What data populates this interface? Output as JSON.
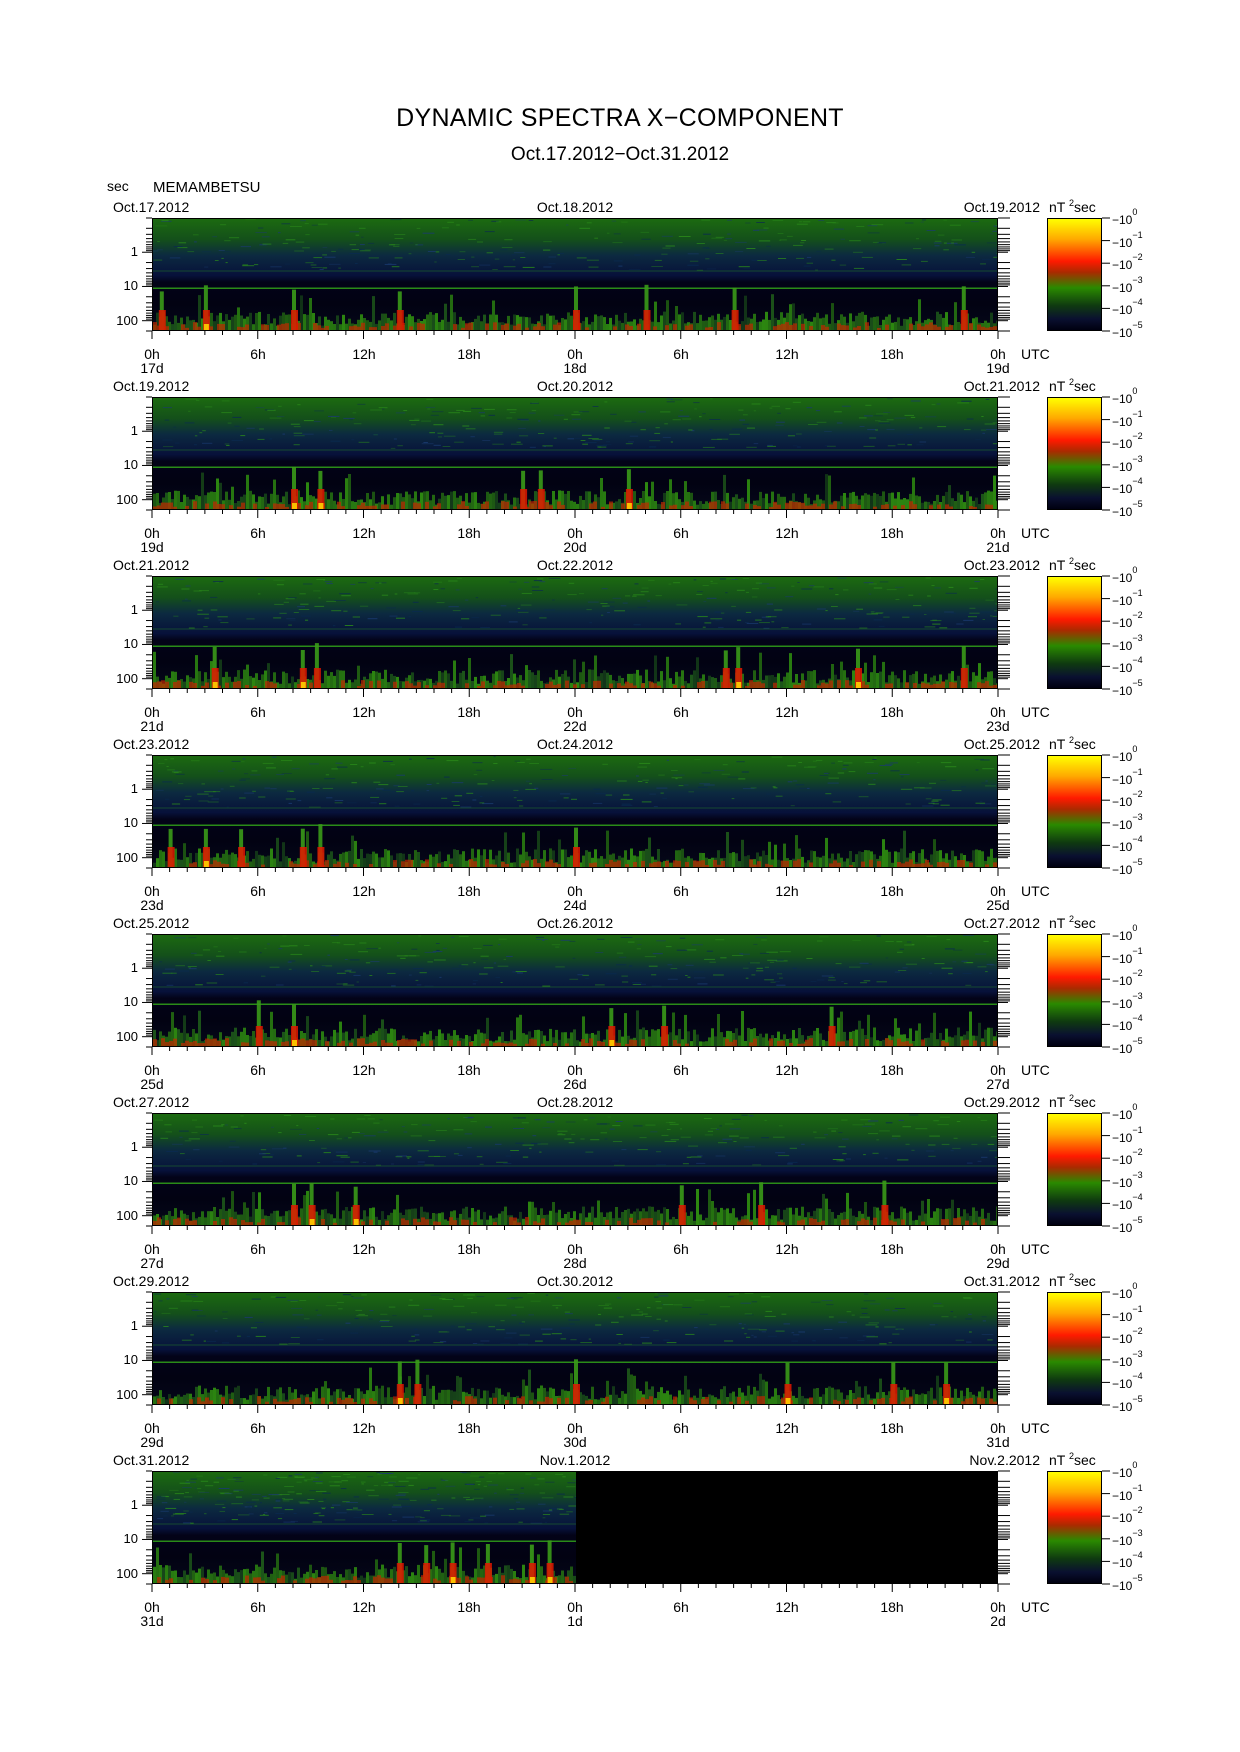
{
  "title": "DYNAMIC SPECTRA X−COMPONENT",
  "subtitle": "Oct.17.2012−Oct.31.2012",
  "station": "MEMAMBETSU",
  "y_unit": "sec",
  "colorbar_unit": "nT",
  "colorbar_unit_sup": "2",
  "colorbar_unit_suffix": "sec",
  "colorbar_ticks": [
    {
      "base": "10",
      "exp": "0"
    },
    {
      "base": "10",
      "exp": "−1"
    },
    {
      "base": "10",
      "exp": "−2"
    },
    {
      "base": "10",
      "exp": "−3"
    },
    {
      "base": "10",
      "exp": "−4"
    },
    {
      "base": "10",
      "exp": "−5"
    }
  ],
  "y_tick_labels": [
    "1",
    "10",
    "100"
  ],
  "x_tick_labels": [
    "0h",
    "6h",
    "12h",
    "18h",
    "0h",
    "6h",
    "12h",
    "18h",
    "0h"
  ],
  "utc_label": "UTC",
  "colors": {
    "background": "#05051e",
    "green": "#2f8f10",
    "red": "#e01800",
    "yellow": "#ffd000"
  },
  "chart_data": {
    "type": "heatmap",
    "title": "DYNAMIC SPECTRA X−COMPONENT",
    "subtitle": "Oct.17.2012−Oct.31.2012",
    "ylabel": "sec",
    "y_scale": "log",
    "y_ticks": [
      1,
      10,
      100
    ],
    "x_ticks_hours": [
      0,
      6,
      12,
      18,
      24,
      30,
      36,
      42,
      48
    ],
    "colorbar": {
      "label": "nT²sec",
      "scale": "log",
      "range": [
        1e-05,
        1
      ]
    },
    "panels": [
      {
        "left_date": "Oct.17.2012",
        "mid_date": "Oct.18.2012",
        "right_date": "Oct.19.2012",
        "day_labels": [
          "17d",
          "18d",
          "19d"
        ],
        "no_data_from_hour": null,
        "peak_activity_hours": [
          0.5,
          3,
          8,
          14,
          24,
          28,
          33,
          46
        ]
      },
      {
        "left_date": "Oct.19.2012",
        "mid_date": "Oct.20.2012",
        "right_date": "Oct.21.2012",
        "day_labels": [
          "19d",
          "20d",
          "21d"
        ],
        "no_data_from_hour": null,
        "peak_activity_hours": [
          8,
          9.5,
          21,
          22,
          27
        ]
      },
      {
        "left_date": "Oct.21.2012",
        "mid_date": "Oct.22.2012",
        "right_date": "Oct.23.2012",
        "day_labels": [
          "21d",
          "22d",
          "23d"
        ],
        "no_data_from_hour": null,
        "peak_activity_hours": [
          3.5,
          8.5,
          9.3,
          32.5,
          33.2,
          40,
          46
        ]
      },
      {
        "left_date": "Oct.23.2012",
        "mid_date": "Oct.24.2012",
        "right_date": "Oct.25.2012",
        "day_labels": [
          "23d",
          "24d",
          "25d"
        ],
        "no_data_from_hour": null,
        "peak_activity_hours": [
          1,
          3,
          5,
          8.5,
          9.5,
          24
        ]
      },
      {
        "left_date": "Oct.25.2012",
        "mid_date": "Oct.26.2012",
        "right_date": "Oct.27.2012",
        "day_labels": [
          "25d",
          "26d",
          "27d"
        ],
        "no_data_from_hour": null,
        "peak_activity_hours": [
          6,
          8,
          26,
          29,
          38.5
        ]
      },
      {
        "left_date": "Oct.27.2012",
        "mid_date": "Oct.28.2012",
        "right_date": "Oct.29.2012",
        "day_labels": [
          "27d",
          "28d",
          "29d"
        ],
        "no_data_from_hour": null,
        "peak_activity_hours": [
          8,
          9,
          11.5,
          30,
          34.5,
          41.5
        ]
      },
      {
        "left_date": "Oct.29.2012",
        "mid_date": "Oct.30.2012",
        "right_date": "Oct.31.2012",
        "day_labels": [
          "29d",
          "30d",
          "31d"
        ],
        "no_data_from_hour": null,
        "peak_activity_hours": [
          14,
          15,
          24,
          36,
          42,
          45
        ]
      },
      {
        "left_date": "Oct.31.2012",
        "mid_date": "Nov.1.2012",
        "right_date": "Nov.2.2012",
        "day_labels": [
          "31d",
          "1d",
          "2d"
        ],
        "no_data_from_hour": 24,
        "peak_activity_hours": [
          14,
          15.5,
          17,
          19,
          21.5,
          22.5
        ]
      }
    ]
  }
}
